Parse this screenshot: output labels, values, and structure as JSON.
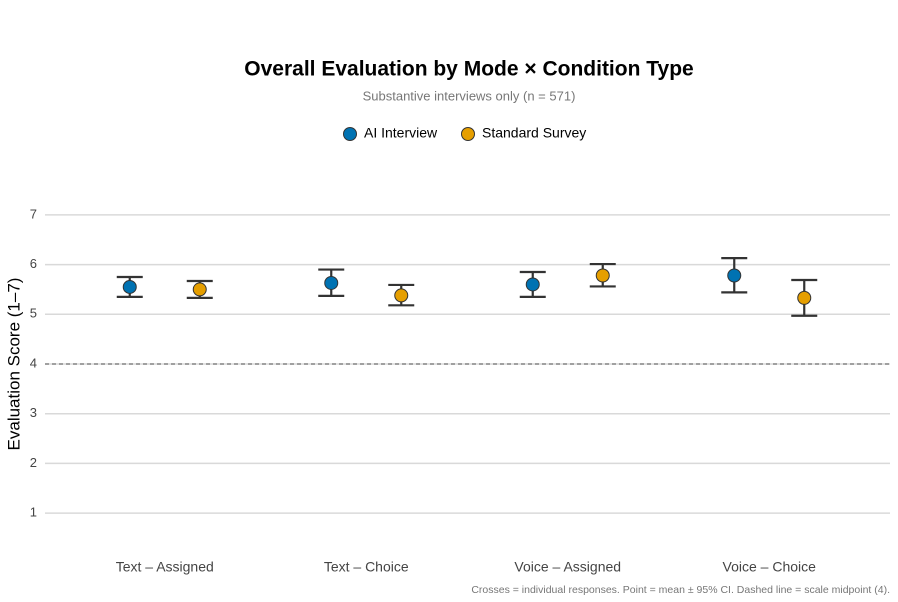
{
  "chart_data": {
    "type": "dot-errorbar",
    "title": "Overall Evaluation by Mode × Condition Type",
    "subtitle": "Substantive interviews only (n = 571)",
    "y_label": "Evaluation Score (1–7)",
    "caption": "Crosses = individual responses. Point = mean ± 95% CI. Dashed line = scale midpoint (4).",
    "categories": [
      "Text – Assigned",
      "Text – Choice",
      "Voice – Assigned",
      "Voice – Choice"
    ],
    "series": [
      {
        "name": "AI Interview",
        "color": "#0072B2",
        "values": [
          5.55,
          5.63,
          5.6,
          5.78
        ],
        "lower": [
          5.35,
          5.37,
          5.35,
          5.44
        ],
        "upper": [
          5.75,
          5.9,
          5.85,
          6.13
        ]
      },
      {
        "name": "Standard Survey",
        "color": "#E69F00",
        "values": [
          5.5,
          5.38,
          5.78,
          5.33
        ],
        "lower": [
          5.33,
          5.18,
          5.56,
          4.97
        ],
        "upper": [
          5.67,
          5.59,
          6.01,
          5.69
        ]
      }
    ],
    "midpoint": 4,
    "ylim": [
      0.5,
      7.5
    ],
    "yticks": [
      1,
      2,
      3,
      4,
      5,
      6,
      7
    ],
    "grid": true,
    "legend": "top"
  }
}
